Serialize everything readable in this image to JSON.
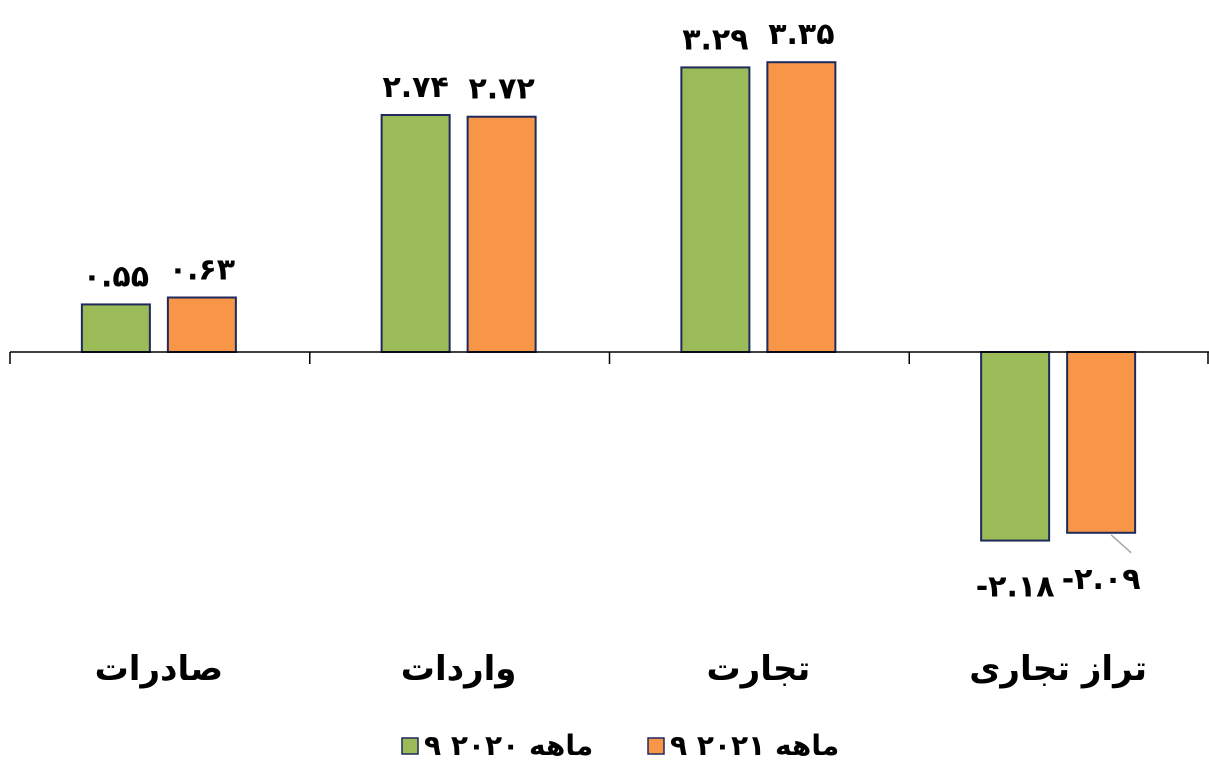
{
  "chart_data": {
    "type": "bar",
    "title": "",
    "xlabel": "",
    "ylabel": "",
    "categories": [
      "صادرات",
      "واردات",
      "تجارت",
      "تراز تجاری"
    ],
    "series": [
      {
        "name": "۹ ماهه ۲۰۲۰",
        "color": "#9BBB59",
        "values": [
          0.55,
          2.74,
          3.29,
          -2.18
        ],
        "labels": [
          "۰.۵۵",
          "۲.۷۴",
          "۳.۲۹",
          "-۲.۱۸"
        ]
      },
      {
        "name": "۹ ماهه ۲۰۲۱",
        "color": "#F79646",
        "values": [
          0.63,
          2.72,
          3.35,
          -2.09
        ],
        "labels": [
          "۰.۶۳",
          "۲.۷۲",
          "۳.۳۵",
          "-۲.۰۹"
        ]
      }
    ],
    "ylim": [
      -2.2,
      3.4
    ],
    "grid": false,
    "legend_position": "bottom",
    "bar_outline_color": "#1F2A5C"
  }
}
